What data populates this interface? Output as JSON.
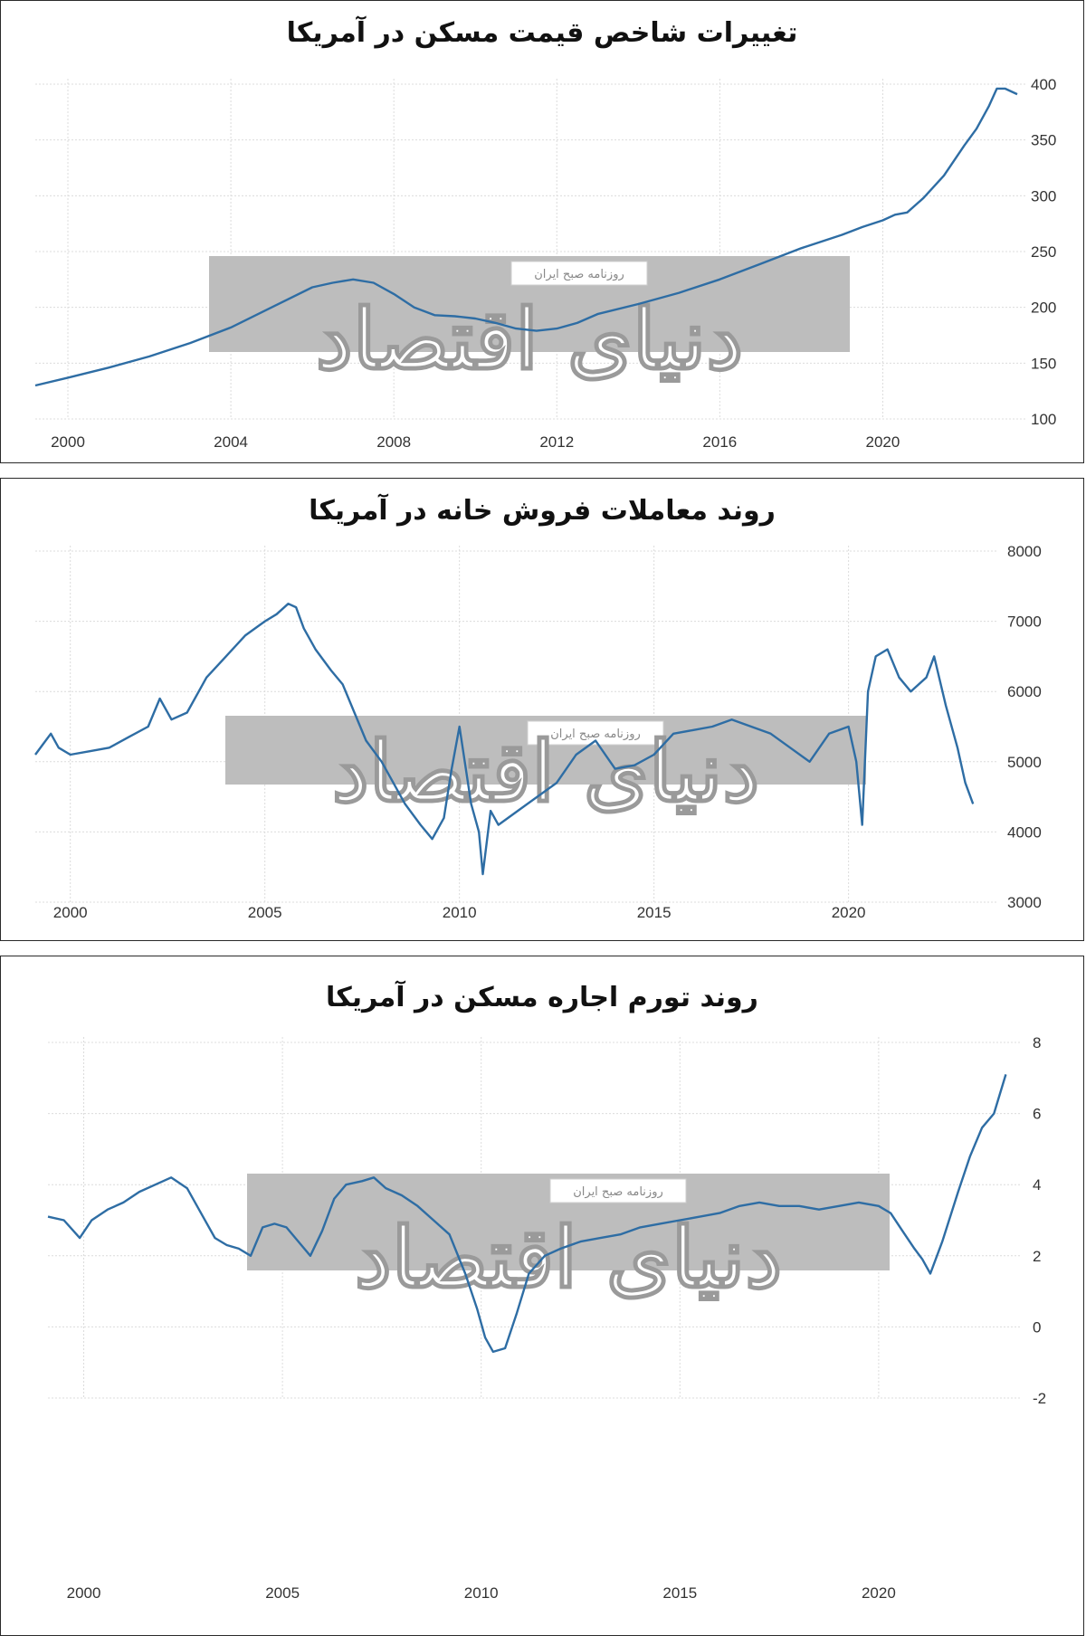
{
  "watermark": {
    "logo": "دنیای اقتصاد",
    "tagline": "روزنامه صبح ایران"
  },
  "chart_data": [
    {
      "type": "line",
      "title": "تغییرات شاخص قیمت مسکن در آمریکا",
      "xlim": [
        1999.2,
        2023.5
      ],
      "ylim": [
        100,
        400
      ],
      "xticks": [
        2000,
        2004,
        2008,
        2012,
        2016,
        2020
      ],
      "yticks": [
        100,
        150,
        200,
        250,
        300,
        350,
        400
      ],
      "grid": true,
      "series": [
        {
          "color": "#2e6da4",
          "x": [
            1999.2,
            2000,
            2001,
            2002,
            2003,
            2004,
            2005,
            2006,
            2006.5,
            2007,
            2007.5,
            2008,
            2008.5,
            2009,
            2009.5,
            2010,
            2010.5,
            2011,
            2011.5,
            2012,
            2012.5,
            2013,
            2014,
            2015,
            2016,
            2017,
            2018,
            2019,
            2019.5,
            2020,
            2020.3,
            2020.6,
            2021,
            2021.5,
            2022,
            2022.3,
            2022.6,
            2022.8,
            2023,
            2023.3
          ],
          "y": [
            130,
            137,
            146,
            156,
            168,
            182,
            200,
            218,
            222,
            225,
            222,
            212,
            200,
            193,
            192,
            190,
            186,
            181,
            179,
            181,
            186,
            194,
            203,
            213,
            225,
            239,
            253,
            265,
            272,
            278,
            283,
            285,
            298,
            318,
            345,
            360,
            380,
            396,
            396,
            391
          ]
        }
      ]
    },
    {
      "type": "line",
      "title": "روند معاملات فروش خانه در آمریکا",
      "xlim": [
        1999.1,
        2023.8
      ],
      "ylim": [
        3000,
        8000
      ],
      "xticks": [
        2000,
        2005,
        2010,
        2015,
        2020
      ],
      "yticks": [
        3000,
        4000,
        5000,
        6000,
        7000,
        8000
      ],
      "grid": true,
      "series": [
        {
          "color": "#2e6da4",
          "x": [
            1999.1,
            1999.3,
            1999.5,
            1999.7,
            2000,
            2000.5,
            2001,
            2001.5,
            2002,
            2002.3,
            2002.6,
            2003,
            2003.5,
            2004,
            2004.5,
            2005,
            2005.3,
            2005.6,
            2005.8,
            2006,
            2006.3,
            2006.7,
            2007,
            2007.3,
            2007.6,
            2008,
            2008.3,
            2008.6,
            2009,
            2009.3,
            2009.6,
            2009.8,
            2010,
            2010.3,
            2010.5,
            2010.6,
            2010.8,
            2011,
            2011.5,
            2012,
            2012.5,
            2013,
            2013.5,
            2014,
            2014.5,
            2015,
            2015.5,
            2016,
            2016.5,
            2017,
            2017.5,
            2018,
            2018.5,
            2019,
            2019.5,
            2020,
            2020.2,
            2020.35,
            2020.5,
            2020.7,
            2021,
            2021.3,
            2021.6,
            2022,
            2022.2,
            2022.5,
            2022.8,
            2023,
            2023.2
          ],
          "y": [
            5100,
            5250,
            5400,
            5200,
            5100,
            5150,
            5200,
            5350,
            5500,
            5900,
            5600,
            5700,
            6200,
            6500,
            6800,
            7000,
            7100,
            7250,
            7200,
            6900,
            6600,
            6300,
            6100,
            5700,
            5300,
            5000,
            4700,
            4400,
            4100,
            3900,
            4200,
            4900,
            5500,
            4400,
            4000,
            3400,
            4300,
            4100,
            4300,
            4500,
            4700,
            5100,
            5300,
            4900,
            4950,
            5100,
            5400,
            5450,
            5500,
            5600,
            5500,
            5400,
            5200,
            5000,
            5400,
            5500,
            5000,
            4100,
            6000,
            6500,
            6600,
            6200,
            6000,
            6200,
            6500,
            5800,
            5200,
            4700,
            4400
          ]
        }
      ]
    },
    {
      "type": "line",
      "title": "روند تورم اجاره مسکن در آمریکا",
      "xlim": [
        1999.1,
        2023.6
      ],
      "ylim": [
        -2,
        8
      ],
      "xticks": [
        2000,
        2005,
        2010,
        2015,
        2020
      ],
      "yticks": [
        -2,
        0,
        2,
        4,
        6,
        8
      ],
      "grid": true,
      "series": [
        {
          "color": "#2e6da4",
          "x": [
            1999.1,
            1999.5,
            1999.9,
            2000.2,
            2000.6,
            2001,
            2001.4,
            2001.8,
            2002.2,
            2002.6,
            2003,
            2003.3,
            2003.6,
            2003.9,
            2004.2,
            2004.5,
            2004.8,
            2005.1,
            2005.4,
            2005.7,
            2006,
            2006.3,
            2006.6,
            2007,
            2007.3,
            2007.6,
            2008,
            2008.4,
            2008.8,
            2009.2,
            2009.6,
            2009.9,
            2010.1,
            2010.3,
            2010.6,
            2010.9,
            2011.2,
            2011.6,
            2012,
            2012.5,
            2013,
            2013.5,
            2014,
            2014.5,
            2015,
            2015.5,
            2016,
            2016.5,
            2017,
            2017.5,
            2018,
            2018.5,
            2019,
            2019.5,
            2020,
            2020.3,
            2020.6,
            2020.9,
            2021.1,
            2021.3,
            2021.6,
            2022,
            2022.3,
            2022.6,
            2022.9,
            2023.2
          ],
          "y": [
            3.1,
            3.0,
            2.5,
            3.0,
            3.3,
            3.5,
            3.8,
            4.0,
            4.2,
            3.9,
            3.1,
            2.5,
            2.3,
            2.2,
            2.0,
            2.8,
            2.9,
            2.8,
            2.4,
            2.0,
            2.7,
            3.6,
            4.0,
            4.1,
            4.2,
            3.9,
            3.7,
            3.4,
            3.0,
            2.6,
            1.5,
            0.5,
            -0.3,
            -0.7,
            -0.6,
            0.4,
            1.5,
            2.0,
            2.2,
            2.4,
            2.5,
            2.6,
            2.8,
            2.9,
            3.0,
            3.1,
            3.2,
            3.4,
            3.5,
            3.4,
            3.4,
            3.3,
            3.4,
            3.5,
            3.4,
            3.2,
            2.7,
            2.2,
            1.9,
            1.5,
            2.4,
            3.8,
            4.8,
            5.6,
            6.0,
            7.1
          ]
        }
      ]
    }
  ]
}
